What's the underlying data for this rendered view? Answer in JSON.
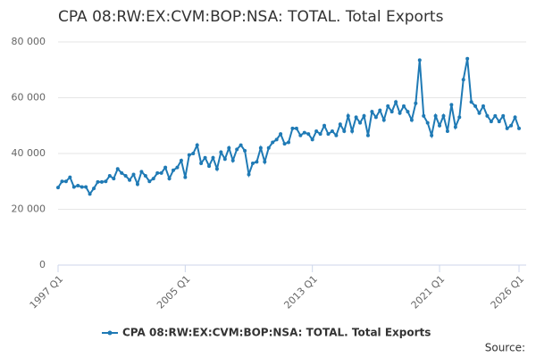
{
  "chart_data": {
    "type": "line",
    "title": "CPA 08:RW:EX:CVM:BOP:NSA: TOTAL. Total Exports",
    "source": "Source:",
    "categories": [
      "1997 Q1",
      null,
      null,
      null,
      null,
      null,
      null,
      null,
      null,
      null,
      null,
      null,
      null,
      null,
      null,
      null,
      null,
      null,
      null,
      null,
      null,
      null,
      null,
      null,
      null,
      null,
      null,
      null,
      null,
      null,
      null,
      null,
      "2005 Q1",
      null,
      null,
      null,
      null,
      null,
      null,
      null,
      null,
      null,
      null,
      null,
      null,
      null,
      null,
      null,
      null,
      null,
      null,
      null,
      null,
      null,
      null,
      null,
      null,
      null,
      null,
      null,
      null,
      null,
      null,
      null,
      "2013 Q1",
      null,
      null,
      null,
      null,
      null,
      null,
      null,
      null,
      null,
      null,
      null,
      null,
      null,
      null,
      null,
      null,
      null,
      null,
      null,
      null,
      null,
      null,
      null,
      null,
      null,
      null,
      null,
      null,
      null,
      null,
      null,
      "2021 Q1",
      null,
      null,
      null,
      null,
      null,
      null,
      null,
      null,
      null,
      null,
      null,
      null,
      null,
      null,
      null,
      null,
      null,
      null,
      null,
      "2026 Q1"
    ],
    "series": [
      {
        "name": "CPA 08:RW:EX:CVM:BOP:NSA: TOTAL. Total Exports",
        "color": "#1f7ab5",
        "values": [
          27800,
          30000,
          30000,
          31500,
          28000,
          28500,
          28000,
          28000,
          25500,
          27500,
          29800,
          29800,
          30000,
          32000,
          31000,
          34500,
          33000,
          32000,
          30500,
          32500,
          29000,
          33500,
          32000,
          30000,
          31000,
          33000,
          33000,
          35000,
          31000,
          34000,
          35000,
          37500,
          31500,
          39500,
          40000,
          43000,
          36500,
          38500,
          35500,
          38500,
          34500,
          40500,
          38000,
          42000,
          37500,
          41500,
          43000,
          41000,
          32500,
          36500,
          37000,
          42000,
          37000,
          42000,
          44000,
          45000,
          47000,
          43500,
          44000,
          49000,
          49000,
          46500,
          47500,
          47000,
          45000,
          48000,
          47000,
          50000,
          47000,
          48000,
          46500,
          50500,
          48000,
          53500,
          48000,
          53000,
          51000,
          53500,
          46500,
          55000,
          53000,
          55500,
          52000,
          57000,
          55000,
          58500,
          54500,
          57000,
          55000,
          52000,
          58000,
          73500,
          53500,
          51000,
          46500,
          53500,
          50000,
          53500,
          48000,
          57500,
          49500,
          53000,
          66500,
          74000,
          58500,
          57000,
          54500,
          57000,
          53500,
          51500,
          53500,
          51500,
          53500,
          49000,
          50000,
          53000,
          49000
        ]
      }
    ],
    "ylim": [
      0,
      80000
    ],
    "yticks": [
      0,
      {
        "value": 20000,
        "label": "20 000"
      },
      {
        "value": 40000,
        "label": "40 000"
      },
      {
        "value": 60000,
        "label": "60 000"
      },
      {
        "value": 80000,
        "label": "80 000"
      }
    ],
    "grid": true
  }
}
